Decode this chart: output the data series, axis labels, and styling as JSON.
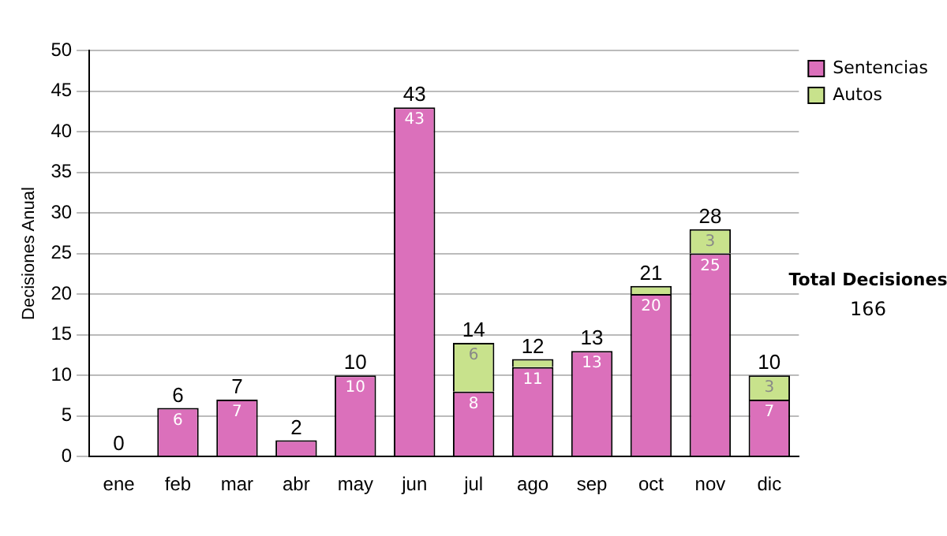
{
  "chart_data": {
    "type": "bar",
    "stacked": true,
    "ylabel": "Decisiones Anual",
    "categories": [
      "ene",
      "feb",
      "mar",
      "abr",
      "may",
      "jun",
      "jul",
      "ago",
      "sep",
      "oct",
      "nov",
      "dic"
    ],
    "series": [
      {
        "name": "Sentencias",
        "color": "#db70bb",
        "values": [
          0,
          6,
          7,
          2,
          10,
          43,
          8,
          11,
          13,
          20,
          25,
          7
        ],
        "value_labels": [
          null,
          "6",
          "7",
          null,
          "10",
          "43",
          "8",
          "11",
          "13",
          "20",
          "25",
          "7"
        ]
      },
      {
        "name": "Autos",
        "color": "#c8e28c",
        "values": [
          0,
          0,
          0,
          0,
          0,
          0,
          6,
          1,
          0,
          1,
          3,
          3
        ],
        "value_labels": [
          null,
          null,
          null,
          null,
          null,
          null,
          "6",
          null,
          null,
          null,
          "3",
          "3"
        ]
      }
    ],
    "totals": [
      "0",
      "6",
      "7",
      "2",
      "10",
      "43",
      "14",
      "12",
      "13",
      "21",
      "28",
      "10"
    ],
    "ylim": [
      0,
      50
    ],
    "yticks": [
      0,
      5,
      10,
      15,
      20,
      25,
      30,
      35,
      40,
      45,
      50
    ],
    "grid": "y",
    "legend": "right",
    "annotations": [
      "Total Decisiones",
      "166"
    ]
  }
}
